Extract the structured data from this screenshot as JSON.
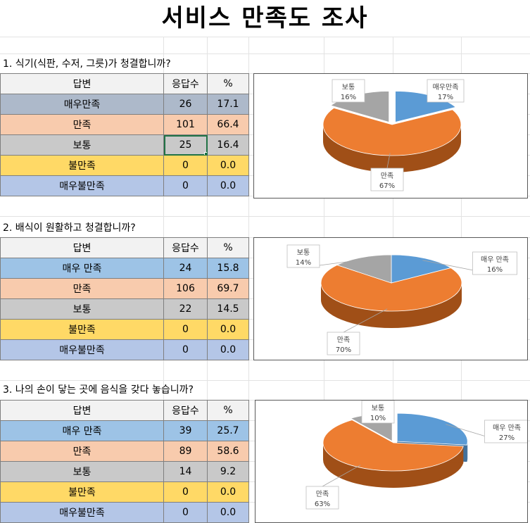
{
  "title": "서비스 만족도 조사",
  "table_header": [
    "답변",
    "응답수",
    "%"
  ],
  "colors": {
    "very_satisfied": "#5b9bd5",
    "satisfied": "#ed7d31",
    "normal": "#a5a5a5",
    "row_very_satisfied_q1": "#adb9ca",
    "row_very_satisfied": "#9dc3e6",
    "row_satisfied": "#f8cbad",
    "row_normal": "#c9c9c9",
    "row_unsatisfied": "#ffd966",
    "row_very_unsatisfied": "#b4c6e7"
  },
  "questions": [
    {
      "text": "1. 식기(식판, 수저, 그릇)가 청결합니까?",
      "rows": [
        {
          "label": "매우만족",
          "count": "26",
          "pct": "17.1"
        },
        {
          "label": "만족",
          "count": "101",
          "pct": "66.4"
        },
        {
          "label": "보통",
          "count": "25",
          "pct": "16.4"
        },
        {
          "label": "불만족",
          "count": "0",
          "pct": "0.0"
        },
        {
          "label": "매우불만족",
          "count": "0",
          "pct": "0.0"
        }
      ]
    },
    {
      "text": "2. 배식이 원활하고 청결합니까?",
      "rows": [
        {
          "label": "매우 만족",
          "count": "24",
          "pct": "15.8"
        },
        {
          "label": "만족",
          "count": "106",
          "pct": "69.7"
        },
        {
          "label": "보통",
          "count": "22",
          "pct": "14.5"
        },
        {
          "label": "불만족",
          "count": "0",
          "pct": "0.0"
        },
        {
          "label": "매우불만족",
          "count": "0",
          "pct": "0.0"
        }
      ]
    },
    {
      "text": "3. 나의 손이 닿는 곳에 음식을 갖다 놓습니까?",
      "rows": [
        {
          "label": "매우 만족",
          "count": "39",
          "pct": "25.7"
        },
        {
          "label": "만족",
          "count": "89",
          "pct": "58.6"
        },
        {
          "label": "보통",
          "count": "14",
          "pct": "9.2"
        },
        {
          "label": "불만족",
          "count": "0",
          "pct": "0.0"
        },
        {
          "label": "매우불만족",
          "count": "0",
          "pct": "0.0"
        }
      ]
    }
  ],
  "chart_data": [
    {
      "type": "pie",
      "title": "",
      "style": "3d-exploded",
      "categories": [
        "매우만족",
        "만족",
        "보통"
      ],
      "values": [
        17,
        67,
        16
      ],
      "value_labels": [
        "17%",
        "67%",
        "16%"
      ]
    },
    {
      "type": "pie",
      "title": "",
      "style": "3d",
      "categories": [
        "매우 만족",
        "만족",
        "보통"
      ],
      "values": [
        16,
        70,
        14
      ],
      "value_labels": [
        "16%",
        "70%",
        "14%"
      ]
    },
    {
      "type": "pie",
      "title": "",
      "style": "3d-exploded",
      "categories": [
        "매우 만족",
        "만족",
        "보통"
      ],
      "values": [
        27,
        63,
        10
      ],
      "value_labels": [
        "27%",
        "63%",
        "10%"
      ]
    }
  ]
}
